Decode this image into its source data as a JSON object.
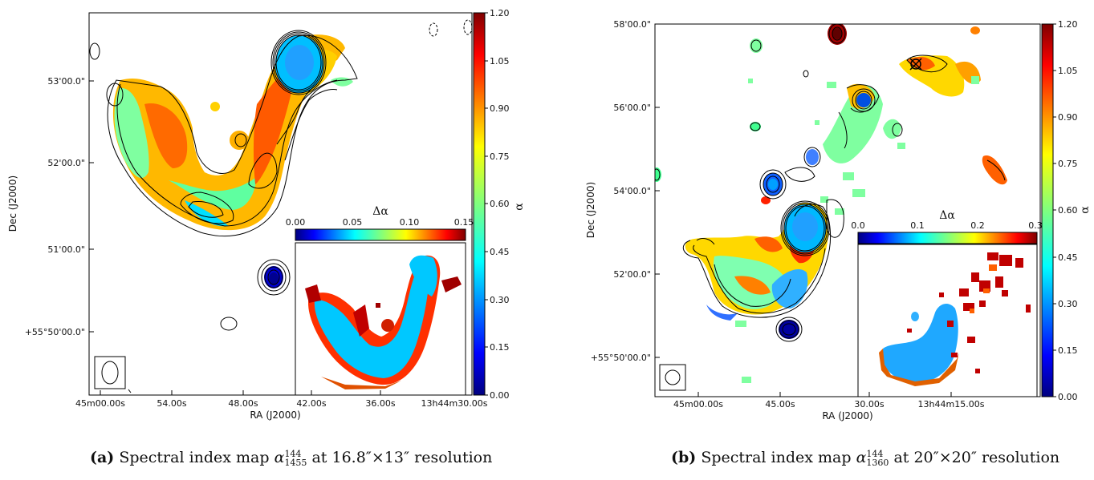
{
  "panels": [
    {
      "id": "a",
      "xlabel": "RA (J2000)",
      "ylabel": "Dec (J2000)",
      "x_ticks": [
        "45m00.00s",
        "54.00s",
        "48.00s",
        "42.00s",
        "36.00s",
        "13h44m30.00s"
      ],
      "y_ticks": [
        "53'00.0\"",
        "52'00.0\"",
        "51'00.0\"",
        "+55°50'00.0\""
      ],
      "colorbar_label": "α",
      "colorbar_ticks": [
        "1.20",
        "1.05",
        "0.90",
        "0.75",
        "0.60",
        "0.45",
        "0.30",
        "0.15",
        "0.00"
      ],
      "inset_label": "Δα",
      "inset_ticks": [
        "0.00",
        "0.05",
        "0.10",
        "0.15"
      ],
      "caption_tag": "(a)",
      "caption_pre": "Spectral index map ",
      "caption_sym": "α",
      "caption_sup": "144",
      "caption_sub": "1455",
      "caption_post": " at 16.8″×13″ resolution"
    },
    {
      "id": "b",
      "xlabel": "RA (J2000)",
      "ylabel": "Dec (J2000)",
      "x_ticks": [
        "45m00.00s",
        "45.00s",
        "30.00s",
        "13h44m15.00s"
      ],
      "y_ticks": [
        "58'00.0\"",
        "56'00.0\"",
        "54'00.0\"",
        "52'00.0\"",
        "+55°50'00.0\""
      ],
      "colorbar_label": "α",
      "colorbar_ticks": [
        "1.20",
        "1.05",
        "0.90",
        "0.75",
        "0.60",
        "0.45",
        "0.30",
        "0.15",
        "0.00"
      ],
      "inset_label": "Δα",
      "inset_ticks": [
        "0.0",
        "0.1",
        "0.2",
        "0.3"
      ],
      "caption_tag": "(b)",
      "caption_pre": "Spectral index map ",
      "caption_sym": "α",
      "caption_sup": "144",
      "caption_sub": "1360",
      "caption_post": " at 20″×20″ resolution"
    }
  ],
  "colors": {
    "colormap": [
      "#00007f",
      "#0000ff",
      "#007fff",
      "#00ffff",
      "#7fff7f",
      "#ffff00",
      "#ff7f00",
      "#ff0000",
      "#7f0000"
    ]
  }
}
